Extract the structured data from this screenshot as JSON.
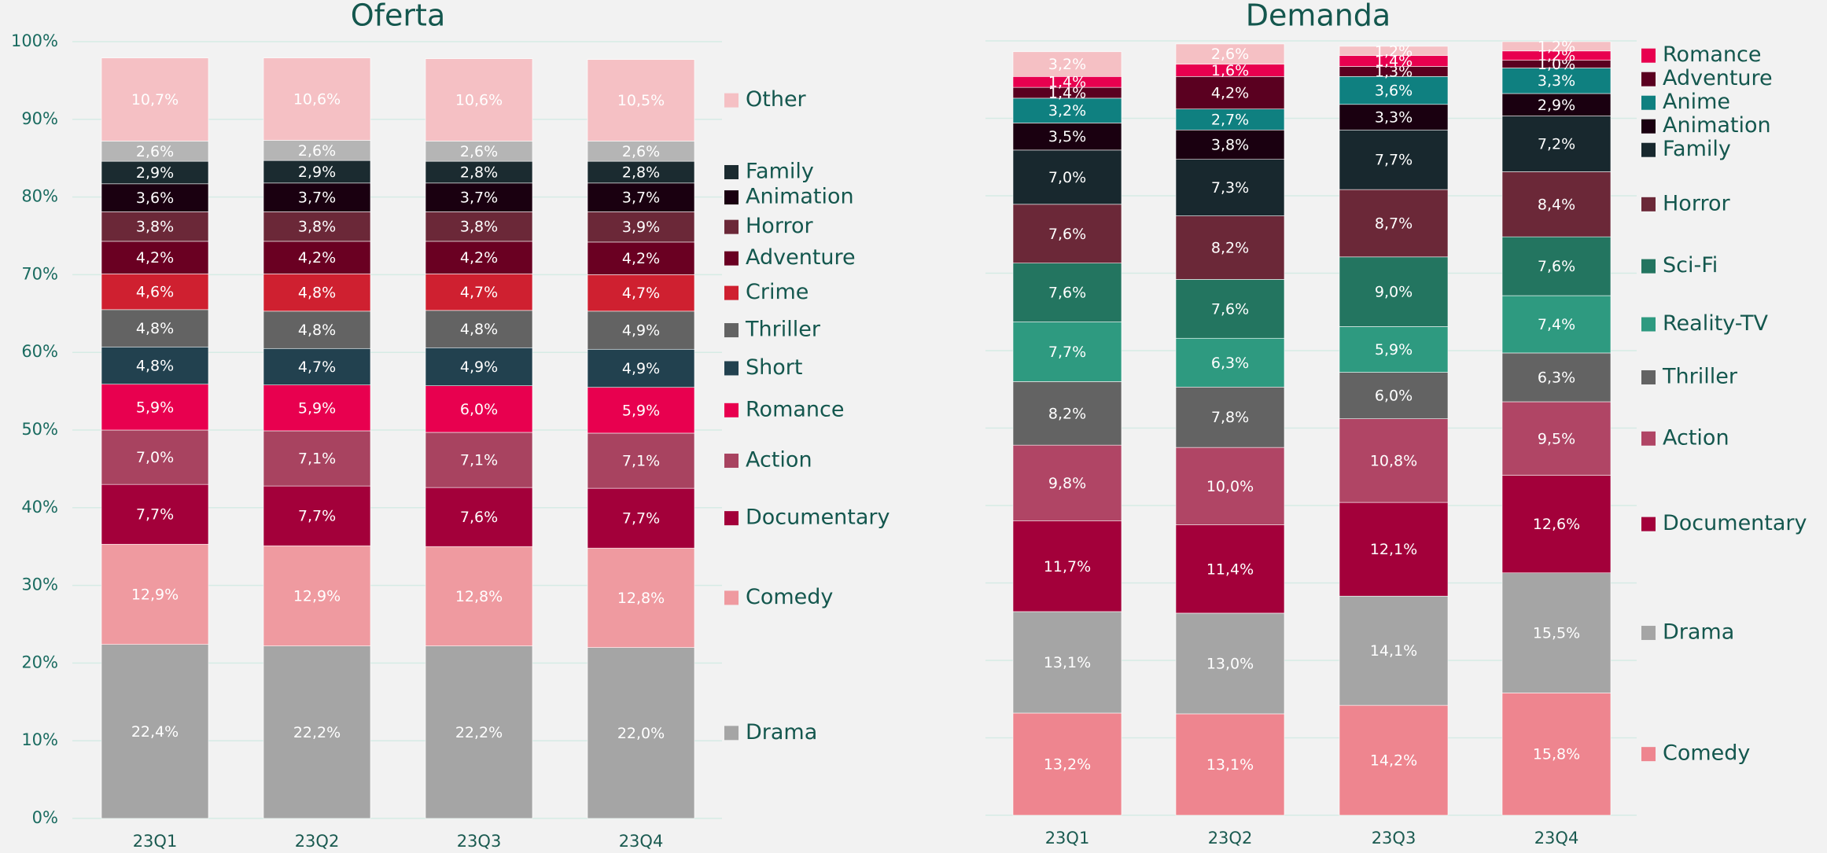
{
  "chart_data": [
    {
      "type": "stacked_bar",
      "title": "Oferta",
      "categories": [
        "23Q1",
        "23Q2",
        "23Q3",
        "23Q4"
      ],
      "ylim": [
        0,
        100
      ],
      "yticks": [
        {
          "value": 0,
          "label": "0%"
        },
        {
          "value": 10,
          "label": "10%"
        },
        {
          "value": 20,
          "label": "20%"
        },
        {
          "value": 30,
          "label": "30%"
        },
        {
          "value": 40,
          "label": "40%"
        },
        {
          "value": 50,
          "label": "50%"
        },
        {
          "value": 60,
          "label": "60%"
        },
        {
          "value": 70,
          "label": "70%"
        },
        {
          "value": 80,
          "label": "80%"
        },
        {
          "value": 90,
          "label": "90%"
        },
        {
          "value": 100,
          "label": "100%"
        }
      ],
      "tick_labels": true,
      "grid": true,
      "legend": "right",
      "series": [
        {
          "name": "Drama",
          "color": "#a5a5a5",
          "values": [
            22.4,
            22.2,
            22.2,
            22.0
          ],
          "value_labels": [
            "22,4%",
            "22,2%",
            "22,2%",
            "22,0%"
          ]
        },
        {
          "name": "Comedy",
          "color": "#ef9aa0",
          "values": [
            12.9,
            12.9,
            12.8,
            12.8
          ],
          "value_labels": [
            "12,9%",
            "12,9%",
            "12,8%",
            "12,8%"
          ]
        },
        {
          "name": "Documentary",
          "color": "#a3003a",
          "values": [
            7.7,
            7.7,
            7.6,
            7.7
          ],
          "value_labels": [
            "7,7%",
            "7,7%",
            "7,6%",
            "7,7%"
          ]
        },
        {
          "name": "Action",
          "color": "#a84360",
          "values": [
            7.0,
            7.1,
            7.1,
            7.1
          ],
          "value_labels": [
            "7,0%",
            "7,1%",
            "7,1%",
            "7,1%"
          ]
        },
        {
          "name": "Romance",
          "color": "#e8004f",
          "values": [
            5.9,
            5.9,
            6.0,
            5.9
          ],
          "value_labels": [
            "5,9%",
            "5,9%",
            "6,0%",
            "5,9%"
          ]
        },
        {
          "name": "Short",
          "color": "#22414f",
          "values": [
            4.8,
            4.7,
            4.9,
            4.9
          ],
          "value_labels": [
            "4,8%",
            "4,7%",
            "4,9%",
            "4,9%"
          ]
        },
        {
          "name": "Thriller",
          "color": "#636363",
          "values": [
            4.8,
            4.8,
            4.8,
            4.9
          ],
          "value_labels": [
            "4,8%",
            "4,8%",
            "4,8%",
            "4,9%"
          ]
        },
        {
          "name": "Crime",
          "color": "#cf2030",
          "values": [
            4.6,
            4.8,
            4.7,
            4.7
          ],
          "value_labels": [
            "4,6%",
            "4,8%",
            "4,7%",
            "4,7%"
          ]
        },
        {
          "name": "Adventure",
          "color": "#6a0022",
          "values": [
            4.2,
            4.2,
            4.2,
            4.2
          ],
          "value_labels": [
            "4,2%",
            "4,2%",
            "4,2%",
            "4,2%"
          ]
        },
        {
          "name": "Horror",
          "color": "#6b2838",
          "values": [
            3.8,
            3.8,
            3.8,
            3.9
          ],
          "value_labels": [
            "3,8%",
            "3,8%",
            "3,8%",
            "3,9%"
          ]
        },
        {
          "name": "Animation",
          "color": "#1a0010",
          "values": [
            3.6,
            3.7,
            3.7,
            3.7
          ],
          "value_labels": [
            "3,6%",
            "3,7%",
            "3,7%",
            "3,7%"
          ]
        },
        {
          "name": "Family",
          "color": "#1b2b30",
          "values": [
            2.9,
            2.9,
            2.8,
            2.8
          ],
          "value_labels": [
            "2,9%",
            "2,9%",
            "2,8%",
            "2,8%"
          ]
        },
        {
          "name": null,
          "color": "#b5b5b5",
          "values": [
            2.6,
            2.6,
            2.6,
            2.6
          ],
          "value_labels": [
            "2,6%",
            "2,6%",
            "2,6%",
            "2,6%"
          ]
        },
        {
          "name": "Other",
          "color": "#f5c0c4",
          "values": [
            10.7,
            10.6,
            10.6,
            10.5
          ],
          "value_labels": [
            "10,7%",
            "10,6%",
            "10,6%",
            "10,5%"
          ]
        }
      ]
    },
    {
      "type": "stacked_bar",
      "title": "Demanda",
      "categories": [
        "23Q1",
        "23Q2",
        "23Q3",
        "23Q4"
      ],
      "ylim": [
        0,
        100
      ],
      "yticks": [
        0,
        10,
        20,
        30,
        40,
        50,
        60,
        70,
        80,
        90,
        100
      ],
      "tick_labels": false,
      "grid": true,
      "legend": "right",
      "series": [
        {
          "name": "Comedy",
          "color": "#ee858f",
          "values": [
            13.2,
            13.1,
            14.2,
            15.8
          ],
          "value_labels": [
            "13,2%",
            "13,1%",
            "14,2%",
            "15,8%"
          ]
        },
        {
          "name": "Drama",
          "color": "#a5a5a5",
          "values": [
            13.1,
            13.0,
            14.1,
            15.5
          ],
          "value_labels": [
            "13,1%",
            "13,0%",
            "14,1%",
            "15,5%"
          ]
        },
        {
          "name": "Documentary",
          "color": "#a3003a",
          "values": [
            11.7,
            11.4,
            12.1,
            12.6
          ],
          "value_labels": [
            "11,7%",
            "11,4%",
            "12,1%",
            "12,6%"
          ]
        },
        {
          "name": "Action",
          "color": "#b04565",
          "values": [
            9.8,
            10.0,
            10.8,
            9.5
          ],
          "value_labels": [
            "9,8%",
            "10,0%",
            "10,8%",
            "9,5%"
          ]
        },
        {
          "name": "Thriller",
          "color": "#636363",
          "values": [
            8.2,
            7.8,
            6.0,
            6.3
          ],
          "value_labels": [
            "8,2%",
            "7,8%",
            "6,0%",
            "6,3%"
          ]
        },
        {
          "name": "Reality-TV",
          "color": "#2e9a80",
          "values": [
            7.7,
            6.3,
            5.9,
            7.4
          ],
          "value_labels": [
            "7,7%",
            "6,3%",
            "5,9%",
            "7,4%"
          ]
        },
        {
          "name": "Sci-Fi",
          "color": "#237560",
          "values": [
            7.6,
            7.6,
            9.0,
            7.6
          ],
          "value_labels": [
            "7,6%",
            "7,6%",
            "9,0%",
            "7,6%"
          ]
        },
        {
          "name": "Horror",
          "color": "#6b2838",
          "values": [
            7.6,
            8.2,
            8.7,
            8.4
          ],
          "value_labels": [
            "7,6%",
            "8,2%",
            "8,7%",
            "8,4%"
          ]
        },
        {
          "name": "Family",
          "color": "#18282e",
          "values": [
            7.0,
            7.3,
            7.7,
            7.2
          ],
          "value_labels": [
            "7,0%",
            "7,3%",
            "7,7%",
            "7,2%"
          ]
        },
        {
          "name": "Animation",
          "color": "#1a0010",
          "values": [
            3.5,
            3.8,
            3.3,
            2.9
          ],
          "value_labels": [
            "3,5%",
            "3,8%",
            "3,3%",
            "2,9%"
          ]
        },
        {
          "name": "Anime",
          "color": "#0f8080",
          "values": [
            3.2,
            2.7,
            3.6,
            3.3
          ],
          "value_labels": [
            "3,2%",
            "2,7%",
            "3,6%",
            "3,3%"
          ]
        },
        {
          "name": "Adventure",
          "color": "#5a0020",
          "values": [
            1.4,
            4.2,
            1.3,
            1.0
          ],
          "value_labels": [
            "1,4%",
            "4,2%",
            "1,3%",
            "1,0%"
          ]
        },
        {
          "name": "Romance",
          "color": "#e8004f",
          "values": [
            1.4,
            1.6,
            1.4,
            1.2
          ],
          "value_labels": [
            "1,4%",
            "1,6%",
            "1,4%",
            "1,2%"
          ]
        },
        {
          "name": null,
          "color": "#f5c0c4",
          "values": [
            3.2,
            2.6,
            1.2,
            1.2
          ],
          "value_labels": [
            "3,2%",
            "2,6%",
            "1,2%",
            "1,2%"
          ]
        }
      ]
    }
  ]
}
